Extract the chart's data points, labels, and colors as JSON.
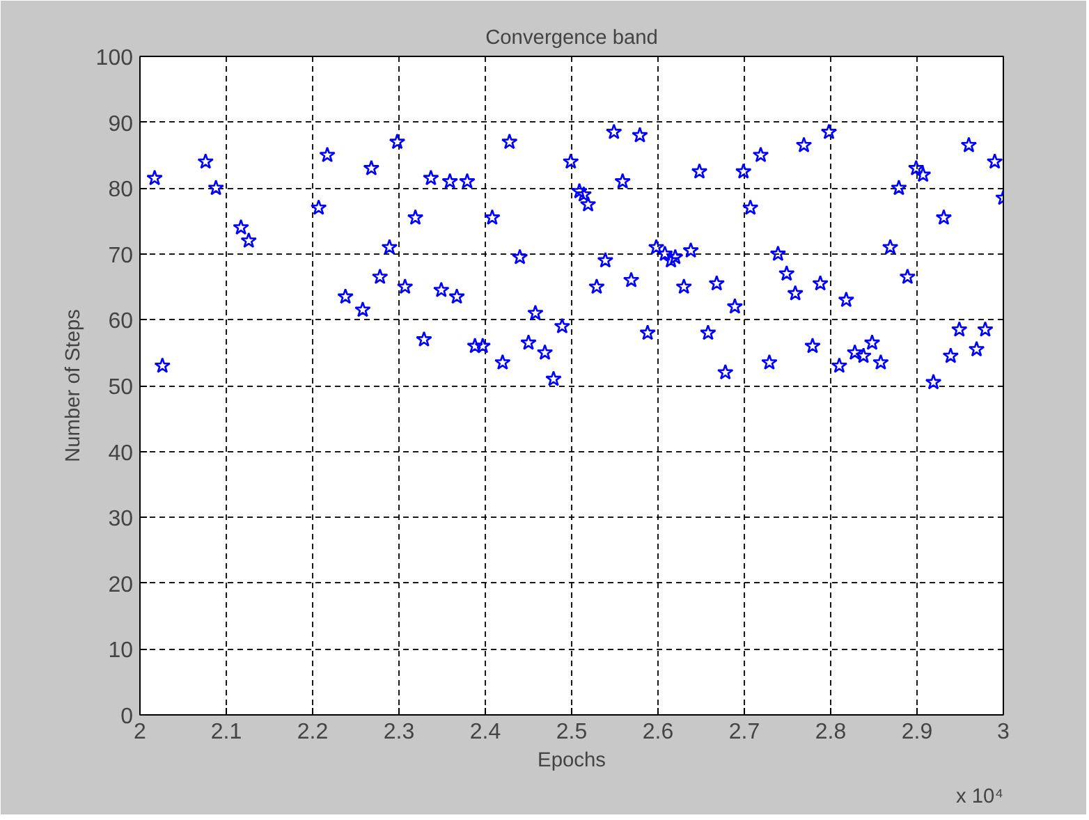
{
  "chart_data": {
    "type": "scatter",
    "title": "Convergence band",
    "xlabel": "Epochs",
    "ylabel": "Number of Steps",
    "annotations": [
      "x 10⁴"
    ],
    "xlim": [
      2,
      3
    ],
    "xticks": [
      2,
      2.1,
      2.2,
      2.3,
      2.4,
      2.5,
      2.6,
      2.7,
      2.8,
      2.9,
      3
    ],
    "ylim": [
      0,
      100
    ],
    "yticks": [
      0,
      10,
      20,
      30,
      40,
      50,
      60,
      70,
      80,
      90,
      100
    ],
    "grid": true,
    "marker": "star",
    "series": [
      {
        "color": "#0000ff",
        "x": [
          2.017,
          2.026,
          2.076,
          2.088,
          2.117,
          2.126,
          2.207,
          2.217,
          2.238,
          2.258,
          2.268,
          2.278,
          2.289,
          2.298,
          2.307,
          2.319,
          2.329,
          2.337,
          2.349,
          2.359,
          2.367,
          2.379,
          2.388,
          2.397,
          2.408,
          2.42,
          2.428,
          2.44,
          2.45,
          2.458,
          2.469,
          2.479,
          2.489,
          2.499,
          2.509,
          2.514,
          2.519,
          2.529,
          2.539,
          2.549,
          2.559,
          2.569,
          2.579,
          2.588,
          2.598,
          2.608,
          2.615,
          2.62,
          2.63,
          2.638,
          2.648,
          2.658,
          2.668,
          2.678,
          2.689,
          2.699,
          2.707,
          2.719,
          2.729,
          2.739,
          2.749,
          2.759,
          2.769,
          2.779,
          2.788,
          2.798,
          2.81,
          2.818,
          2.828,
          2.838,
          2.848,
          2.858,
          2.869,
          2.879,
          2.889,
          2.899,
          2.907,
          2.919,
          2.931,
          2.939,
          2.949,
          2.96,
          2.969,
          2.979,
          2.99,
          3.0
        ],
        "values": [
          81.5,
          53,
          84,
          80,
          74,
          72,
          77,
          85,
          63.5,
          61.5,
          83,
          66.5,
          71,
          87,
          65,
          75.5,
          57,
          81.5,
          64.5,
          81,
          63.5,
          81,
          56,
          56,
          75.5,
          53.5,
          87,
          69.5,
          56.5,
          61,
          55,
          51,
          59,
          84,
          79.5,
          79,
          77.5,
          65,
          69,
          88.5,
          81,
          66,
          88,
          58,
          71,
          70,
          69,
          69.5,
          65,
          70.5,
          82.5,
          58,
          65.5,
          52,
          62,
          82.5,
          77,
          85,
          53.5,
          70,
          67,
          64,
          86.5,
          56,
          65.5,
          88.5,
          53,
          63,
          55,
          54.5,
          56.5,
          53.5,
          71,
          80,
          66.5,
          83,
          82,
          50.5,
          75.5,
          54.5,
          58.5,
          86.5,
          55.5,
          58.5,
          84,
          78.5
        ]
      }
    ]
  }
}
